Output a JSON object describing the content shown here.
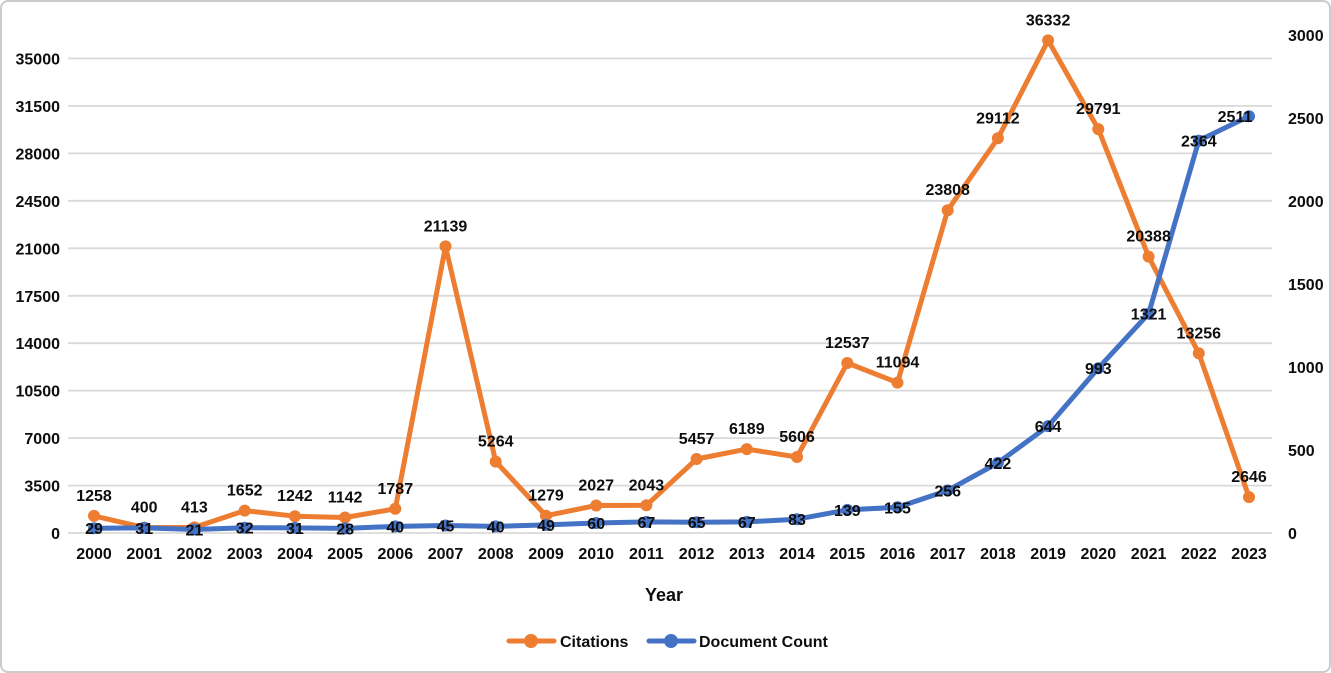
{
  "chart_data": {
    "type": "line",
    "title": "",
    "xlabel": "Year",
    "categories": [
      "2000",
      "2001",
      "2002",
      "2003",
      "2004",
      "2005",
      "2006",
      "2007",
      "2008",
      "2009",
      "2010",
      "2011",
      "2012",
      "2013",
      "2014",
      "2015",
      "2016",
      "2017",
      "2018",
      "2019",
      "2020",
      "2021",
      "2022",
      "2023"
    ],
    "series": [
      {
        "name": "Citations",
        "axis": "left",
        "color": "#ED7D31",
        "values": [
          1258,
          400,
          413,
          1652,
          1242,
          1142,
          1787,
          21139,
          5264,
          1279,
          2027,
          2043,
          5457,
          6189,
          5606,
          12537,
          11094,
          23808,
          29112,
          36332,
          29791,
          20388,
          13256,
          2646
        ]
      },
      {
        "name": "Document Count",
        "axis": "right",
        "color": "#4472C4",
        "values": [
          29,
          31,
          21,
          32,
          31,
          28,
          40,
          45,
          40,
          49,
          60,
          67,
          65,
          67,
          83,
          139,
          155,
          256,
          422,
          644,
          993,
          1321,
          2364,
          2511
        ]
      }
    ],
    "left_axis": {
      "ticks": [
        0,
        3500,
        7000,
        10500,
        14000,
        17500,
        21000,
        24500,
        28000,
        31500,
        35000
      ],
      "range": [
        0,
        35000
      ]
    },
    "right_axis": {
      "ticks": [
        0,
        500,
        1000,
        1500,
        2000,
        2500,
        3000
      ],
      "range": [
        0,
        3000
      ]
    },
    "grid": true,
    "gridline_color": "#D9D9D9",
    "data_label_color": "#000000",
    "legend_position": "bottom",
    "marker": "circle"
  }
}
